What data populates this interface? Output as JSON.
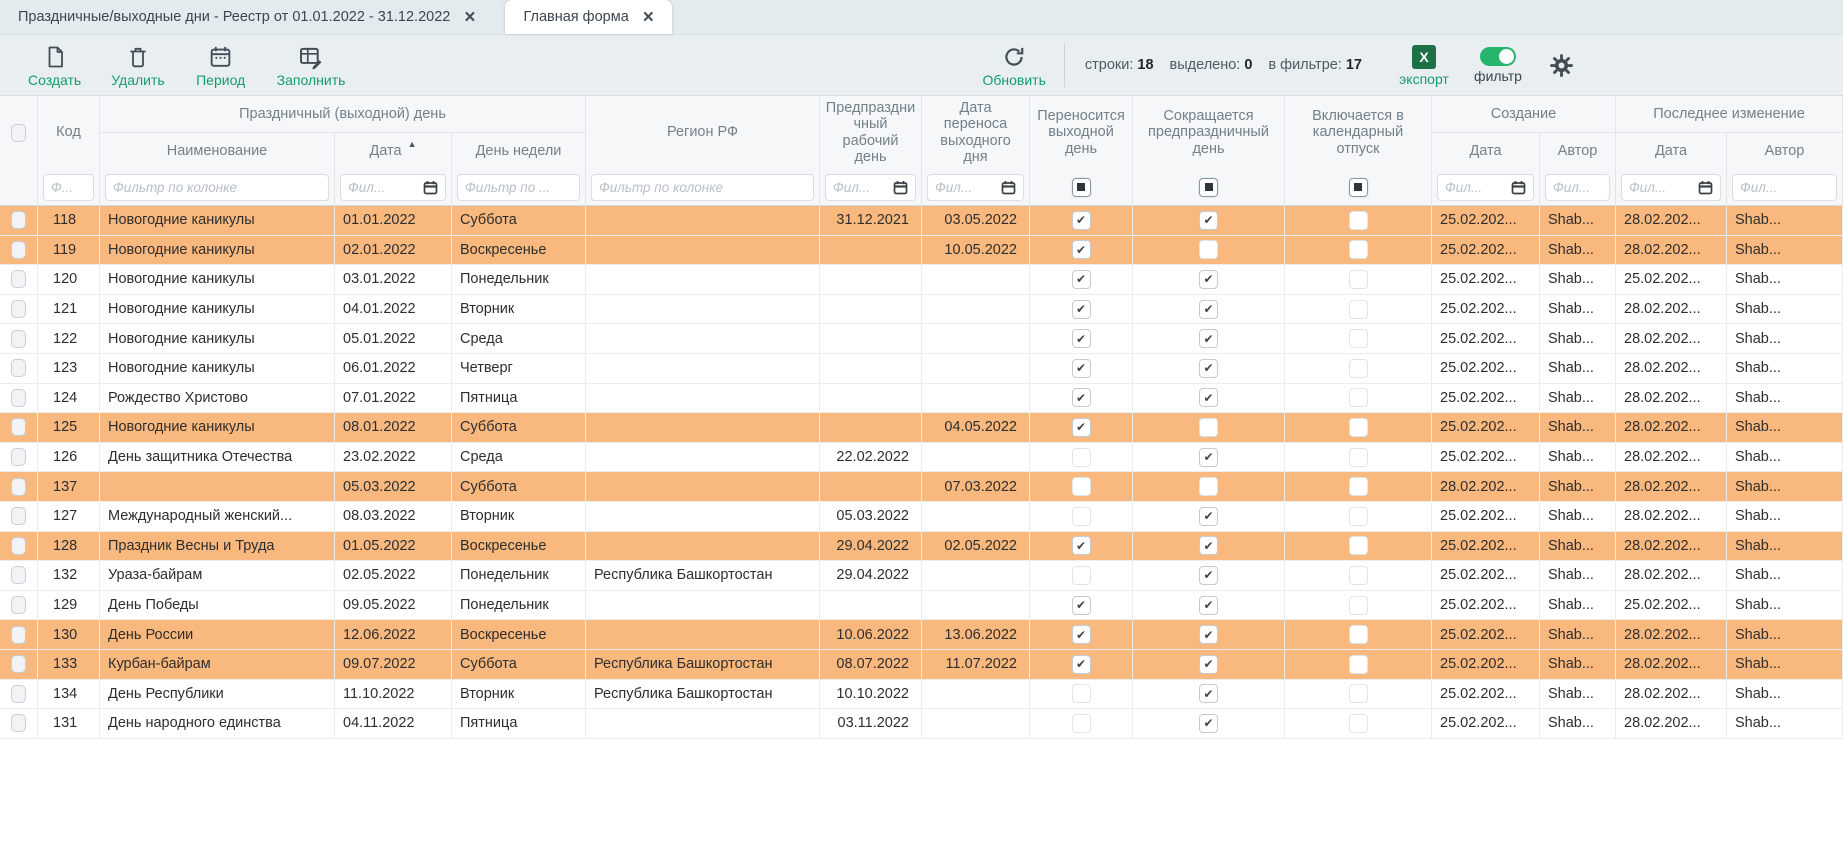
{
  "tabs": [
    {
      "label": "Праздничные/выходные дни - Реестр от 01.01.2022 - 31.12.2022",
      "active": true
    },
    {
      "label": "Главная форма",
      "active": false
    }
  ],
  "toolbar": {
    "buttons": [
      {
        "label": "Создать",
        "icon": "new-document-icon"
      },
      {
        "label": "Удалить",
        "icon": "trash-icon"
      },
      {
        "label": "Период",
        "icon": "calendar-icon"
      },
      {
        "label": "Заполнить",
        "icon": "fill-table-icon"
      }
    ],
    "refresh_label": "Обновить",
    "stats": {
      "rows_label": "строки:",
      "rows_value": "18",
      "selected_label": "выделено:",
      "selected_value": "0",
      "filtered_label": "в фильтре:",
      "filtered_value": "17"
    },
    "export_label": "экспорт",
    "export_icon_letter": "X",
    "filter_label": "фильтр"
  },
  "table": {
    "groups": {
      "holiday": "Праздничный (выходной) день",
      "creation": "Создание",
      "modification": "Последнее изменение"
    },
    "columns": {
      "code": "Код",
      "name": "Наименование",
      "date": "Дата",
      "weekday": "День недели",
      "region": "Регион РФ",
      "preholiday": "Предпраздничный рабочий день",
      "transfer_date": "Дата переноса выходного дня",
      "moves_day_off": "Переносится выходной день",
      "shortens_preholiday": "Сокращается предпраздничный день",
      "in_vacation": "Включается в календарный отпуск",
      "created_date": "Дата",
      "created_author": "Автор",
      "modified_date": "Дата",
      "modified_author": "Автор"
    },
    "filters": {
      "code": "Ф...",
      "name": "Фильтр по колонке",
      "date": "Фил...",
      "weekday": "Фильтр по ...",
      "region": "Фильтр по колонке",
      "preholiday": "Фил...",
      "transfer_date": "Фил...",
      "created_date": "Фил...",
      "created_author": "Фил...",
      "modified_date": "Фил...",
      "modified_author": "Фил..."
    },
    "rows": [
      {
        "code": "118",
        "name": "Новогодние каникулы",
        "date": "01.01.2022",
        "weekday": "Суббота",
        "region": "",
        "preholiday": "31.12.2021",
        "transfer_date": "03.05.2022",
        "moves_day_off": true,
        "shortens_preholiday": true,
        "in_vacation": false,
        "created_date": "25.02.202...",
        "created_author": "Shab...",
        "modified_date": "28.02.202...",
        "modified_author": "Shab...",
        "highlighted": true
      },
      {
        "code": "119",
        "name": "Новогодние каникулы",
        "date": "02.01.2022",
        "weekday": "Воскресенье",
        "region": "",
        "preholiday": "",
        "transfer_date": "10.05.2022",
        "moves_day_off": true,
        "shortens_preholiday": false,
        "in_vacation": false,
        "created_date": "25.02.202...",
        "created_author": "Shab...",
        "modified_date": "28.02.202...",
        "modified_author": "Shab...",
        "highlighted": true
      },
      {
        "code": "120",
        "name": "Новогодние каникулы",
        "date": "03.01.2022",
        "weekday": "Понедельник",
        "region": "",
        "preholiday": "",
        "transfer_date": "",
        "moves_day_off": true,
        "shortens_preholiday": true,
        "in_vacation": false,
        "created_date": "25.02.202...",
        "created_author": "Shab...",
        "modified_date": "25.02.202...",
        "modified_author": "Shab...",
        "highlighted": false
      },
      {
        "code": "121",
        "name": "Новогодние каникулы",
        "date": "04.01.2022",
        "weekday": "Вторник",
        "region": "",
        "preholiday": "",
        "transfer_date": "",
        "moves_day_off": true,
        "shortens_preholiday": true,
        "in_vacation": false,
        "created_date": "25.02.202...",
        "created_author": "Shab...",
        "modified_date": "28.02.202...",
        "modified_author": "Shab...",
        "highlighted": false
      },
      {
        "code": "122",
        "name": "Новогодние каникулы",
        "date": "05.01.2022",
        "weekday": "Среда",
        "region": "",
        "preholiday": "",
        "transfer_date": "",
        "moves_day_off": true,
        "shortens_preholiday": true,
        "in_vacation": false,
        "created_date": "25.02.202...",
        "created_author": "Shab...",
        "modified_date": "28.02.202...",
        "modified_author": "Shab...",
        "highlighted": false
      },
      {
        "code": "123",
        "name": "Новогодние каникулы",
        "date": "06.01.2022",
        "weekday": "Четверг",
        "region": "",
        "preholiday": "",
        "transfer_date": "",
        "moves_day_off": true,
        "shortens_preholiday": true,
        "in_vacation": false,
        "created_date": "25.02.202...",
        "created_author": "Shab...",
        "modified_date": "28.02.202...",
        "modified_author": "Shab...",
        "highlighted": false
      },
      {
        "code": "124",
        "name": "Рождество Христово",
        "date": "07.01.2022",
        "weekday": "Пятница",
        "region": "",
        "preholiday": "",
        "transfer_date": "",
        "moves_day_off": true,
        "shortens_preholiday": true,
        "in_vacation": false,
        "created_date": "25.02.202...",
        "created_author": "Shab...",
        "modified_date": "28.02.202...",
        "modified_author": "Shab...",
        "highlighted": false
      },
      {
        "code": "125",
        "name": "Новогодние каникулы",
        "date": "08.01.2022",
        "weekday": "Суббота",
        "region": "",
        "preholiday": "",
        "transfer_date": "04.05.2022",
        "moves_day_off": true,
        "shortens_preholiday": false,
        "in_vacation": false,
        "created_date": "25.02.202...",
        "created_author": "Shab...",
        "modified_date": "28.02.202...",
        "modified_author": "Shab...",
        "highlighted": true
      },
      {
        "code": "126",
        "name": "День защитника Отечества",
        "date": "23.02.2022",
        "weekday": "Среда",
        "region": "",
        "preholiday": "22.02.2022",
        "transfer_date": "",
        "moves_day_off": false,
        "shortens_preholiday": true,
        "in_vacation": false,
        "created_date": "25.02.202...",
        "created_author": "Shab...",
        "modified_date": "28.02.202...",
        "modified_author": "Shab...",
        "highlighted": false
      },
      {
        "code": "137",
        "name": "",
        "date": "05.03.2022",
        "weekday": "Суббота",
        "region": "",
        "preholiday": "",
        "transfer_date": "07.03.2022",
        "moves_day_off": false,
        "shortens_preholiday": false,
        "in_vacation": false,
        "created_date": "28.02.202...",
        "created_author": "Shab...",
        "modified_date": "28.02.202...",
        "modified_author": "Shab...",
        "highlighted": true
      },
      {
        "code": "127",
        "name": "Международный женский...",
        "date": "08.03.2022",
        "weekday": "Вторник",
        "region": "",
        "preholiday": "05.03.2022",
        "transfer_date": "",
        "moves_day_off": false,
        "shortens_preholiday": true,
        "in_vacation": false,
        "created_date": "25.02.202...",
        "created_author": "Shab...",
        "modified_date": "28.02.202...",
        "modified_author": "Shab...",
        "highlighted": false
      },
      {
        "code": "128",
        "name": "Праздник Весны и Труда",
        "date": "01.05.2022",
        "weekday": "Воскресенье",
        "region": "",
        "preholiday": "29.04.2022",
        "transfer_date": "02.05.2022",
        "moves_day_off": true,
        "shortens_preholiday": true,
        "in_vacation": false,
        "created_date": "25.02.202...",
        "created_author": "Shab...",
        "modified_date": "28.02.202...",
        "modified_author": "Shab...",
        "highlighted": true
      },
      {
        "code": "132",
        "name": "Ураза-байрам",
        "date": "02.05.2022",
        "weekday": "Понедельник",
        "region": "Республика Башкортостан",
        "preholiday": "29.04.2022",
        "transfer_date": "",
        "moves_day_off": false,
        "shortens_preholiday": true,
        "in_vacation": false,
        "created_date": "25.02.202...",
        "created_author": "Shab...",
        "modified_date": "28.02.202...",
        "modified_author": "Shab...",
        "highlighted": false
      },
      {
        "code": "129",
        "name": "День Победы",
        "date": "09.05.2022",
        "weekday": "Понедельник",
        "region": "",
        "preholiday": "",
        "transfer_date": "",
        "moves_day_off": true,
        "shortens_preholiday": true,
        "in_vacation": false,
        "created_date": "25.02.202...",
        "created_author": "Shab...",
        "modified_date": "25.02.202...",
        "modified_author": "Shab...",
        "highlighted": false
      },
      {
        "code": "130",
        "name": "День России",
        "date": "12.06.2022",
        "weekday": "Воскресенье",
        "region": "",
        "preholiday": "10.06.2022",
        "transfer_date": "13.06.2022",
        "moves_day_off": true,
        "shortens_preholiday": true,
        "in_vacation": false,
        "created_date": "25.02.202...",
        "created_author": "Shab...",
        "modified_date": "28.02.202...",
        "modified_author": "Shab...",
        "highlighted": true
      },
      {
        "code": "133",
        "name": "Курбан-байрам",
        "date": "09.07.2022",
        "weekday": "Суббота",
        "region": "Республика Башкортостан",
        "preholiday": "08.07.2022",
        "transfer_date": "11.07.2022",
        "moves_day_off": true,
        "shortens_preholiday": true,
        "in_vacation": false,
        "created_date": "25.02.202...",
        "created_author": "Shab...",
        "modified_date": "28.02.202...",
        "modified_author": "Shab...",
        "highlighted": true
      },
      {
        "code": "134",
        "name": "День Республики",
        "date": "11.10.2022",
        "weekday": "Вторник",
        "region": "Республика Башкортостан",
        "preholiday": "10.10.2022",
        "transfer_date": "",
        "moves_day_off": false,
        "shortens_preholiday": true,
        "in_vacation": false,
        "created_date": "25.02.202...",
        "created_author": "Shab...",
        "modified_date": "28.02.202...",
        "modified_author": "Shab...",
        "highlighted": false
      },
      {
        "code": "131",
        "name": "День народного единства",
        "date": "04.11.2022",
        "weekday": "Пятница",
        "region": "",
        "preholiday": "03.11.2022",
        "transfer_date": "",
        "moves_day_off": false,
        "shortens_preholiday": true,
        "in_vacation": false,
        "created_date": "25.02.202...",
        "created_author": "Shab...",
        "modified_date": "28.02.202...",
        "modified_author": "Shab...",
        "highlighted": false
      }
    ]
  },
  "colors": {
    "highlight": "#f9b87e",
    "accent_green": "#169c6b",
    "excel_green": "#1e7145",
    "toggle_green": "#27b56d",
    "icon_gray": "#434d56"
  }
}
